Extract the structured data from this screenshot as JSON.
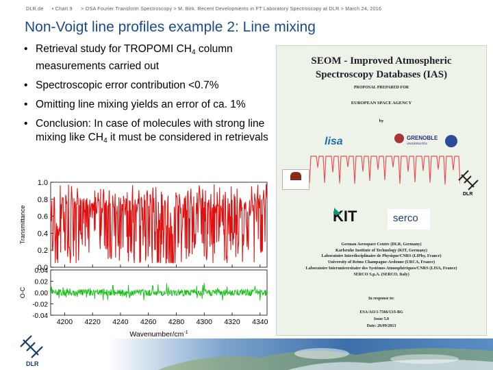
{
  "header": {
    "org": "DLR.de",
    "chart": "• Chart 9",
    "talk": "> OSA Fourier Transform Spectroscopy > M. Birk. Recent Developments in FT Laboratory Spectroscopy at DLR > March 24, 2016"
  },
  "title": "Non-Voigt line profiles example 2: Line mixing",
  "bullets": [
    {
      "pre": "Retrieval study for TROPOMI CH",
      "sub": "4",
      "post": " column measurements carried out"
    },
    {
      "pre": "Spectroscopic error contribution <0.7%",
      "sub": "",
      "post": ""
    },
    {
      "pre": "Omitting line mixing yields an error of ca. 1%",
      "sub": "",
      "post": ""
    },
    {
      "pre": "Conclusion: In case of molecules with strong line mixing like CH",
      "sub": "4",
      "post": " it must be considered in retrievals"
    }
  ],
  "chart_data": {
    "type": "line",
    "xlabel": "Wavenumber/cm",
    "xlabel_sup": "-1",
    "xlim": [
      4190,
      4345
    ],
    "xticks": [
      4200,
      4220,
      4240,
      4260,
      4280,
      4300,
      4320,
      4340
    ],
    "upper": {
      "ylabel": "Transmittance",
      "ylim": [
        0.0,
        1.0
      ],
      "yticks": [
        "1.0",
        "0.8",
        "0.6",
        "0.4",
        "0.2",
        "0.0"
      ],
      "series_color": "#e01010"
    },
    "lower": {
      "ylabel": "O-C",
      "ylim": [
        -0.04,
        0.04
      ],
      "yticks": [
        "0.04",
        "0.02",
        "0.00",
        "-0.02",
        "-0.04"
      ],
      "series_color": "#18c018"
    }
  },
  "cover": {
    "title_line1": "SEOM - Improved Atmospheric",
    "title_line2": "Spectroscopy Databases (IAS)",
    "proposal": "PROPOSAL PREPARED FOR",
    "agency": "EUROPEAN SPACE AGENCY",
    "by": "by",
    "logo_lisa": "lisa",
    "logo_grenoble": "GRENOBLE",
    "logo_grenoble_sub": "UNIVERSITÉS",
    "logo_kit": "KIT",
    "logo_serco": "serco",
    "logo_dlr": "DLR",
    "partners": [
      "German Aerospace Centre (DLR, Germany)",
      "Karlsruhe Institute of Technology (KIT, Germany)",
      "Laboratoire Interdisciplinaire de Physique/CNRS (LIPhy, France)",
      "University of Reims Champagne-Ardenne (URCA, France)",
      "Laboratoire Interuniversitaire des Systèmes Atmosphériques/CNRS (LISA, France)",
      "SERCO S.p.A. (SERCO, Italy)"
    ],
    "response": "In response to:",
    "ref": "ESA/AO/1-7566/13/I-BG",
    "issue": "Issue 5.0",
    "date": "Date: 26/09/2013"
  },
  "footer": {
    "logo_text": "DLR"
  },
  "colors": {
    "title": "#1a4a8a",
    "cover_bg": "#eef3ea",
    "spectrum_red": "#e01010",
    "residual_green": "#18c018"
  }
}
